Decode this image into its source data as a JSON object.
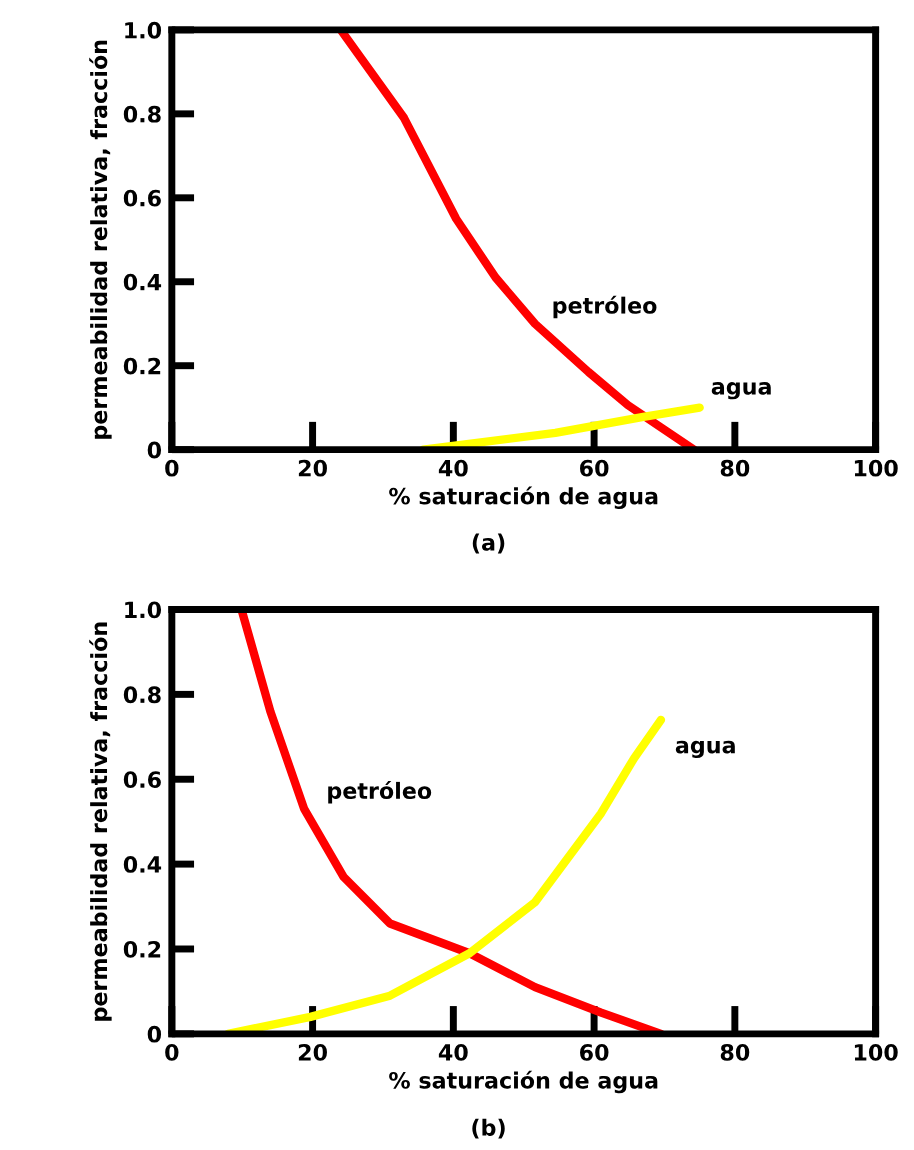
{
  "chart_data": [
    {
      "type": "line",
      "xlabel": "% saturación de agua",
      "ylabel": "permeabilidad relativa, fracción",
      "annotations": [
        "(a)"
      ],
      "xlim": [
        0,
        100
      ],
      "ylim": [
        0,
        1.0
      ],
      "xticks": [
        0,
        20,
        40,
        60,
        80,
        100
      ],
      "yticks": [
        0,
        0.2,
        0.4,
        0.6,
        0.8,
        {
          "value": 1.0,
          "label": "1.0"
        }
      ],
      "grid": false,
      "legend": false,
      "series": [
        {
          "name": "petróleo",
          "color": "#ff0000",
          "x": [
            24,
            33,
            40.4,
            46,
            51.6,
            59.2,
            64.8,
            74.2
          ],
          "values": [
            1.0,
            0.79,
            0.55,
            0.41,
            0.3,
            0.185,
            0.106,
            0
          ]
        },
        {
          "name": "agua",
          "color": "#ffff00",
          "x": [
            35.7,
            54.5,
            67,
            75
          ],
          "values": [
            0,
            0.04,
            0.078,
            0.1
          ]
        }
      ]
    },
    {
      "type": "line",
      "xlabel": "% saturación de agua",
      "ylabel": "permeabilidad relativa, fracción",
      "annotations": [
        "(b)"
      ],
      "xlim": [
        0,
        100
      ],
      "ylim": [
        0,
        1.0
      ],
      "xticks": [
        0,
        20,
        40,
        60,
        80,
        100
      ],
      "yticks": [
        0,
        0.2,
        0.4,
        0.6,
        0.8,
        {
          "value": 1.0,
          "label": "1.0"
        }
      ],
      "grid": false,
      "legend": false,
      "series": [
        {
          "name": "petróleo",
          "color": "#ff0000",
          "x": [
            9.9,
            14,
            18.8,
            24.4,
            31,
            42.3,
            51.6,
            61,
            69.5
          ],
          "values": [
            1.0,
            0.76,
            0.53,
            0.37,
            0.26,
            0.19,
            0.11,
            0.05,
            0
          ]
        },
        {
          "name": "agua",
          "color": "#ffff00",
          "x": [
            8,
            19.7,
            31,
            42.3,
            51.6,
            61,
            65.7,
            69.5
          ],
          "values": [
            0,
            0.04,
            0.09,
            0.19,
            0.31,
            0.52,
            0.65,
            0.74
          ]
        }
      ]
    }
  ]
}
